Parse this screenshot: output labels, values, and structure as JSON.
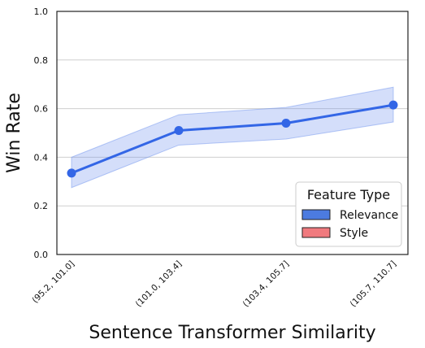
{
  "chart_data": {
    "type": "line",
    "xlabel": "Sentence Transformer Similarity",
    "ylabel": "Win Rate",
    "categories": [
      "(95.2, 101.0]",
      "(101.0, 103.4]",
      "(103.4, 105.7]",
      "(105.7, 110.7]"
    ],
    "ylim": [
      0.0,
      1.0
    ],
    "yticks": [
      "0.0",
      "0.2",
      "0.4",
      "0.6",
      "0.8",
      "1.0"
    ],
    "grid": "horizontal",
    "series": [
      {
        "name": "Relevance",
        "values": [
          0.335,
          0.51,
          0.54,
          0.615
        ],
        "ci_low": [
          0.275,
          0.45,
          0.475,
          0.545
        ],
        "ci_high": [
          0.4,
          0.575,
          0.605,
          0.688
        ],
        "color": "#3366e6",
        "band_color": "#6f93ee"
      }
    ],
    "legend": {
      "title": "Feature Type",
      "position": "lower-right",
      "entries": [
        {
          "label": "Relevance",
          "color": "#4c7be0"
        },
        {
          "label": "Style",
          "color": "#f07a7e"
        }
      ]
    }
  }
}
